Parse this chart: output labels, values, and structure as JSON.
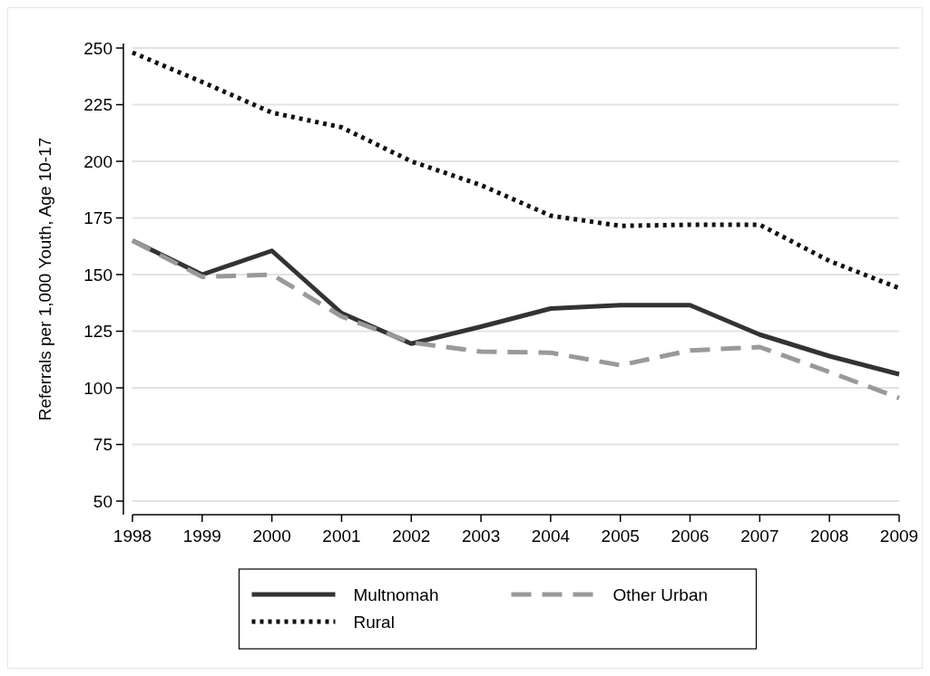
{
  "chart_data": {
    "type": "line",
    "ylabel": "Referrals per 1,000 Youth, Age 10-17",
    "x": [
      1998,
      1999,
      2000,
      2001,
      2002,
      2003,
      2004,
      2005,
      2006,
      2007,
      2008,
      2009
    ],
    "xlim": [
      1998,
      2009
    ],
    "xticks": [
      1998,
      1999,
      2000,
      2001,
      2002,
      2003,
      2004,
      2005,
      2006,
      2007,
      2008,
      2009
    ],
    "ylim": [
      44,
      252
    ],
    "yticks": [
      50,
      75,
      100,
      125,
      150,
      175,
      200,
      225,
      250
    ],
    "grid": "y",
    "legend": "bottom",
    "series": [
      {
        "name": "Multnomah",
        "color": "#333333",
        "line_style": "solid",
        "values": [
          165,
          150,
          160.5,
          133,
          119.5,
          127,
          135,
          136.5,
          136.5,
          123.5,
          114,
          106
        ]
      },
      {
        "name": "Other Urban",
        "color": "#999999",
        "line_style": "dashed",
        "values": [
          165,
          149,
          150,
          131.5,
          120,
          116,
          115.5,
          110,
          116.5,
          118,
          107,
          95.5
        ]
      },
      {
        "name": "Rural",
        "color": "#111111",
        "line_style": "dotted",
        "values": [
          248,
          235,
          221.5,
          215,
          200,
          189.5,
          176,
          171.5,
          172,
          172,
          156,
          144
        ]
      }
    ]
  }
}
